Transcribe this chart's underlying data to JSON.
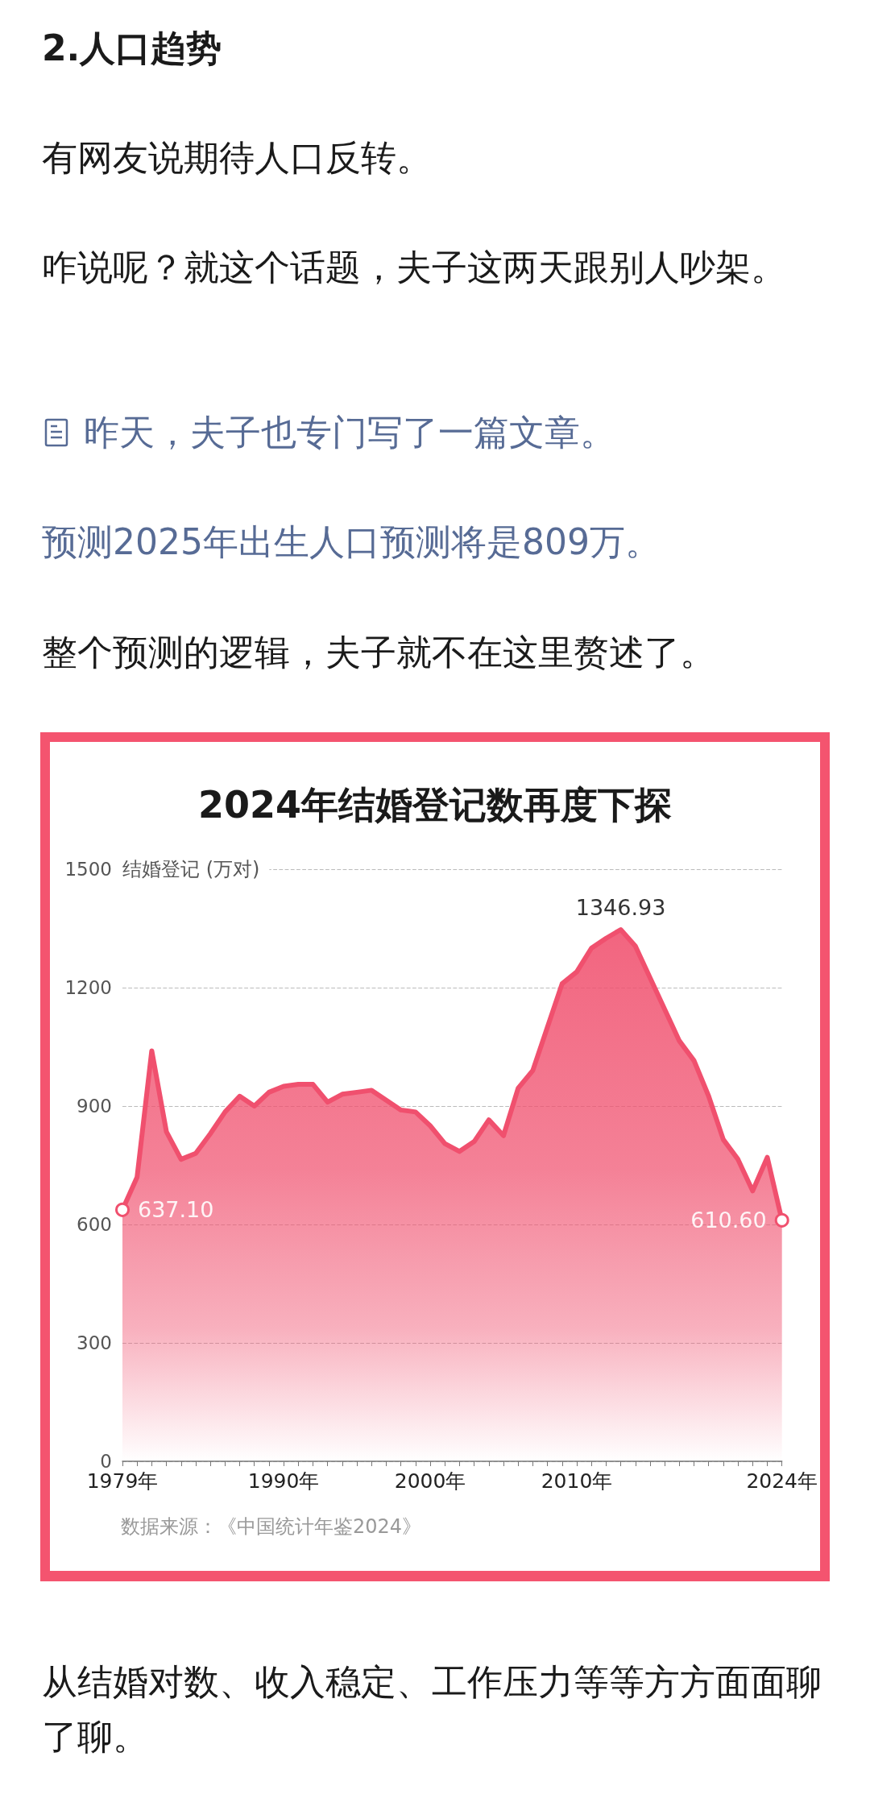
{
  "chart_data": {
    "type": "area",
    "title": "2024年结婚登记数再度下探",
    "ylabel": "结婚登记 (万对)",
    "annotations": [
      "2.人口趋势",
      "有网友说期待人口反转。",
      "咋说呢？就这个话题，夫子这两天跟别人吵架。",
      "昨天，夫子也专门写了一篇文章。",
      "预测2025年出生人口预测将是809万。",
      "整个预测的逻辑，夫子就不在这里赘述了。",
      "数据来源：《中国统计年鉴2024》",
      "从结婚对数、收入稳定、工作压力等等方方面面聊了聊。"
    ],
    "categories": [
      "1979年",
      null,
      null,
      null,
      null,
      null,
      null,
      null,
      null,
      null,
      null,
      "1990年",
      null,
      null,
      null,
      null,
      null,
      null,
      null,
      null,
      null,
      "2000年",
      null,
      null,
      null,
      null,
      null,
      null,
      null,
      null,
      null,
      "2010年",
      null,
      null,
      null,
      null,
      null,
      null,
      null,
      null,
      null,
      null,
      null,
      null,
      null,
      "2024年"
    ],
    "values": [
      637.1,
      720,
      1040,
      835,
      765,
      780,
      830,
      885,
      925,
      900,
      935,
      950,
      955,
      955,
      910,
      930,
      935,
      940,
      915,
      890,
      885,
      850,
      805,
      785,
      810,
      865,
      825,
      945,
      990,
      1100,
      1210,
      1240,
      1300,
      1325,
      1346.93,
      1305,
      1225,
      1145,
      1065,
      1015,
      925,
      815,
      765,
      685,
      770,
      610.6
    ],
    "value_labels": [
      "637.10",
      null,
      null,
      null,
      null,
      null,
      null,
      null,
      null,
      null,
      null,
      null,
      null,
      null,
      null,
      null,
      null,
      null,
      null,
      null,
      null,
      null,
      null,
      null,
      null,
      null,
      null,
      null,
      null,
      null,
      null,
      null,
      null,
      null,
      "1346.93",
      null,
      null,
      null,
      null,
      null,
      null,
      null,
      null,
      null,
      null,
      "610.60"
    ],
    "color": "#f0506e",
    "ylim": [
      0,
      1500
    ],
    "yticks": [
      0,
      300,
      600,
      900,
      1200,
      1500
    ],
    "grid": "y",
    "line_style": "solid"
  }
}
